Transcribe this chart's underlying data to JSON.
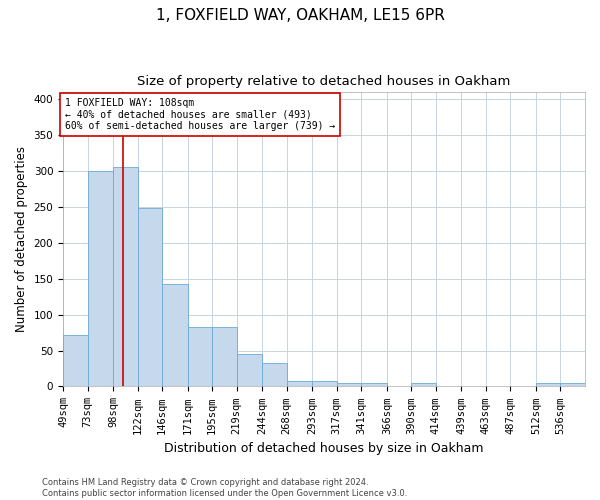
{
  "title1": "1, FOXFIELD WAY, OAKHAM, LE15 6PR",
  "title2": "Size of property relative to detached houses in Oakham",
  "xlabel": "Distribution of detached houses by size in Oakham",
  "ylabel": "Number of detached properties",
  "categories": [
    "49sqm",
    "73sqm",
    "98sqm",
    "122sqm",
    "146sqm",
    "171sqm",
    "195sqm",
    "219sqm",
    "244sqm",
    "268sqm",
    "293sqm",
    "317sqm",
    "341sqm",
    "366sqm",
    "390sqm",
    "414sqm",
    "439sqm",
    "463sqm",
    "487sqm",
    "512sqm",
    "536sqm"
  ],
  "values": [
    72,
    300,
    305,
    248,
    143,
    83,
    83,
    45,
    33,
    8,
    8,
    5,
    5,
    0,
    5,
    0,
    0,
    0,
    0,
    5,
    5
  ],
  "bar_color": "#c5d8ec",
  "bar_edge_color": "#6aaad4",
  "grid_color": "#c8d4e0",
  "annotation_line_color": "#cc0000",
  "annotation_box_text": "1 FOXFIELD WAY: 108sqm\n← 40% of detached houses are smaller (493)\n60% of semi-detached houses are larger (739) →",
  "annotation_box_color": "#ffffff",
  "annotation_box_edge_color": "#cc0000",
  "ylim": [
    0,
    410
  ],
  "footnote": "Contains HM Land Registry data © Crown copyright and database right 2024.\nContains public sector information licensed under the Open Government Licence v3.0.",
  "title1_fontsize": 11,
  "title2_fontsize": 9.5,
  "ylabel_fontsize": 8.5,
  "xlabel_fontsize": 9,
  "tick_fontsize": 7.5,
  "annot_fontsize": 7,
  "footnote_fontsize": 6
}
